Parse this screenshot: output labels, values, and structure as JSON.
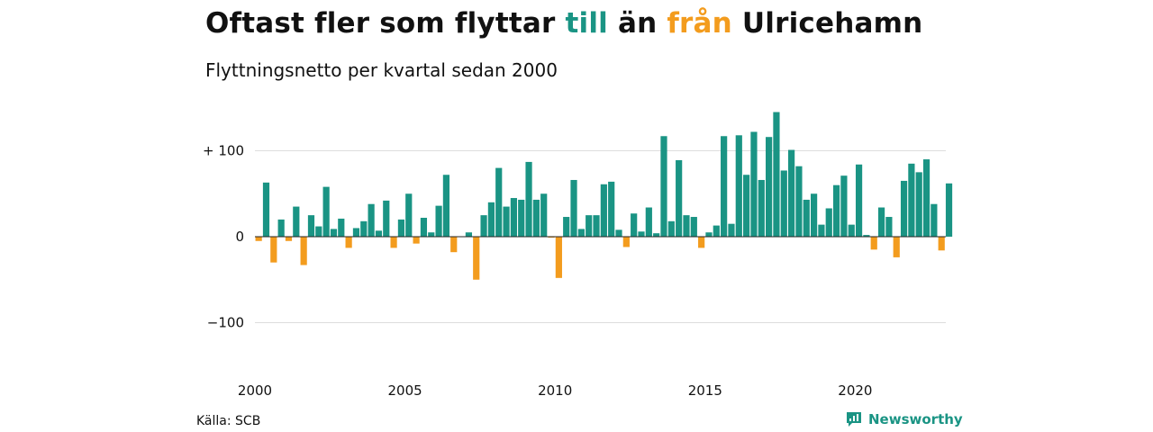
{
  "header": {
    "title_parts": [
      "Oftast fler som flyttar ",
      "till",
      " än ",
      "från",
      " Ulricehamn"
    ],
    "subtitle": "Flyttningsnetto per kvartal sedan 2000"
  },
  "footer": {
    "source": "Källa: SCB",
    "brand": "Newsworthy",
    "brand_icon": "newsworthy-logo-icon"
  },
  "colors": {
    "positive": "#1a9484",
    "negative": "#f39c1e",
    "grid": "#dddddd",
    "brand": "#1a9484"
  },
  "chart_data": {
    "type": "bar",
    "title": "Oftast fler som flyttar till än från Ulricehamn",
    "subtitle": "Flyttningsnetto per kvartal sedan 2000",
    "xlabel": "",
    "ylabel": "",
    "ylim": [
      -140,
      145
    ],
    "y_ticks": [
      100,
      0,
      -100
    ],
    "y_tick_labels": [
      "+ 100",
      "0",
      "−100"
    ],
    "x_ticks": [
      2000,
      2005,
      2010,
      2015,
      2020
    ],
    "x_tick_labels": [
      "2000",
      "2005",
      "2010",
      "2015",
      "2020"
    ],
    "grid": true,
    "legend": "none",
    "start_year": 2000,
    "categories": [
      "2000 K1",
      "2000 K2",
      "2000 K3",
      "2000 K4",
      "2001 K1",
      "2001 K2",
      "2001 K3",
      "2001 K4",
      "2002 K1",
      "2002 K2",
      "2002 K3",
      "2002 K4",
      "2003 K1",
      "2003 K2",
      "2003 K3",
      "2003 K4",
      "2004 K1",
      "2004 K2",
      "2004 K3",
      "2004 K4",
      "2005 K1",
      "2005 K2",
      "2005 K3",
      "2005 K4",
      "2006 K1",
      "2006 K2",
      "2006 K3",
      "2006 K4",
      "2007 K1",
      "2007 K2",
      "2007 K3",
      "2007 K4",
      "2008 K1",
      "2008 K2",
      "2008 K3",
      "2008 K4",
      "2009 K1",
      "2009 K2",
      "2009 K3",
      "2009 K4",
      "2010 K1",
      "2010 K2",
      "2010 K3",
      "2010 K4",
      "2011 K1",
      "2011 K2",
      "2011 K3",
      "2011 K4",
      "2012 K1",
      "2012 K2",
      "2012 K3",
      "2012 K4",
      "2013 K1",
      "2013 K2",
      "2013 K3",
      "2013 K4",
      "2014 K1",
      "2014 K2",
      "2014 K3",
      "2014 K4",
      "2015 K1",
      "2015 K2",
      "2015 K3",
      "2015 K4",
      "2016 K1",
      "2016 K2",
      "2016 K3",
      "2016 K4",
      "2017 K1",
      "2017 K2",
      "2017 K3",
      "2017 K4",
      "2018 K1",
      "2018 K2",
      "2018 K3",
      "2018 K4",
      "2019 K1",
      "2019 K2",
      "2019 K3",
      "2019 K4",
      "2020 K1",
      "2020 K2",
      "2020 K3",
      "2020 K4",
      "2021 K1",
      "2021 K2",
      "2021 K3",
      "2021 K4",
      "2022 K1",
      "2022 K2",
      "2022 K3",
      "2022 K4",
      "2023 K1"
    ],
    "values": [
      -5,
      63,
      -30,
      20,
      -5,
      35,
      -33,
      25,
      12,
      58,
      9,
      21,
      -13,
      10,
      18,
      38,
      7,
      42,
      -13,
      20,
      50,
      -8,
      22,
      5,
      36,
      72,
      -18,
      0,
      5,
      -50,
      25,
      40,
      80,
      35,
      45,
      43,
      87,
      43,
      50,
      -1,
      -48,
      23,
      66,
      9,
      25,
      25,
      61,
      64,
      8,
      -12,
      27,
      6,
      34,
      4,
      117,
      18,
      89,
      25,
      23,
      -13,
      5,
      13,
      117,
      15,
      118,
      72,
      122,
      66,
      116,
      145,
      77,
      101,
      82,
      43,
      50,
      14,
      33,
      60,
      71,
      14,
      84,
      2,
      -15,
      34,
      23,
      -24,
      65,
      85,
      75,
      90,
      38,
      -16,
      62
    ]
  }
}
